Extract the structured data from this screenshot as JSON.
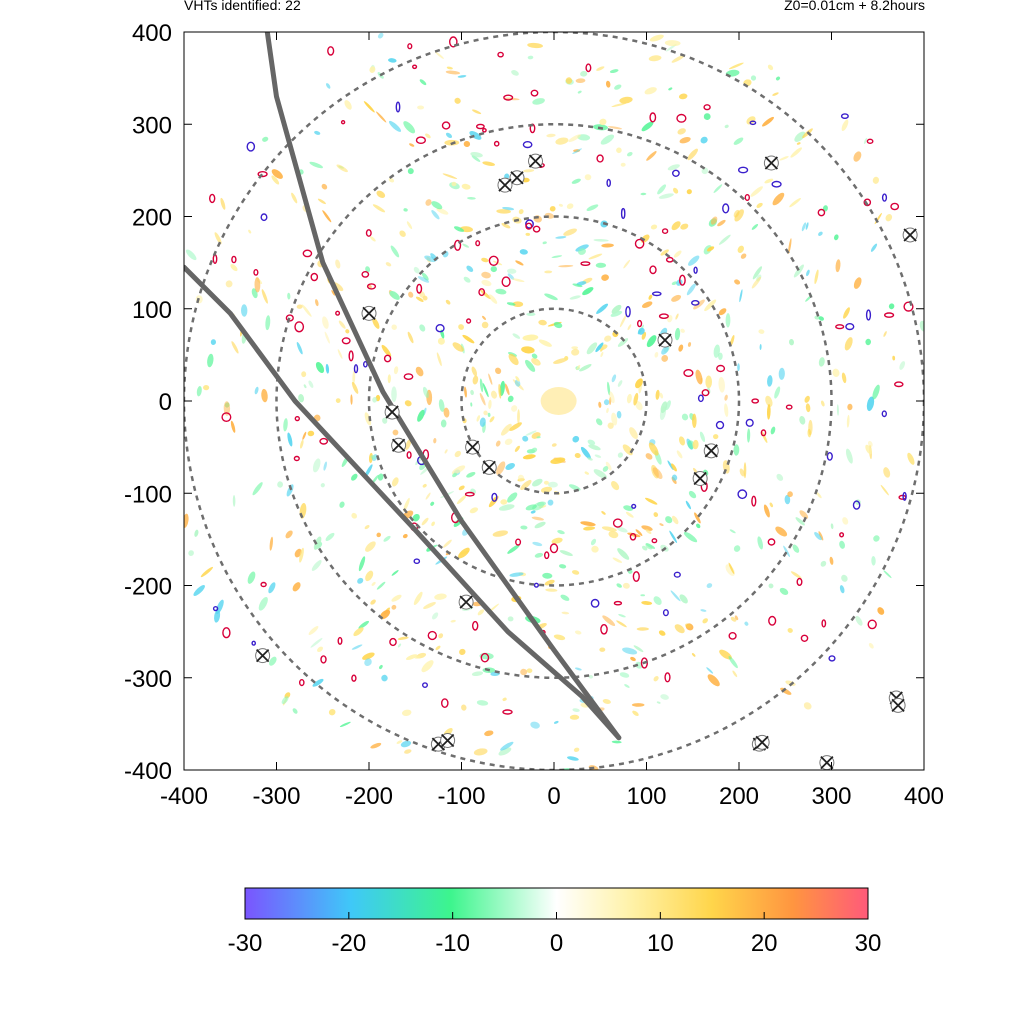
{
  "header": {
    "left": "VHTs identified: 22",
    "right": "Z0=0.01cm  + 8.2hours"
  },
  "chart_data": {
    "type": "scatter",
    "xlim": [
      -400,
      400
    ],
    "ylim": [
      -400,
      400
    ],
    "x_ticks": [
      "-400",
      "-300",
      "-200",
      "-100",
      "0",
      "100",
      "200",
      "300",
      "400"
    ],
    "y_ticks": [
      "400",
      "300",
      "200",
      "100",
      "0",
      "-100",
      "-200",
      "-300",
      "-400"
    ],
    "grid": false,
    "range_rings": [
      100,
      200,
      300,
      400
    ],
    "tracks": [
      [
        [
          -310,
          400
        ],
        [
          -300,
          330
        ],
        [
          -250,
          150
        ],
        [
          -185,
          10
        ],
        [
          -100,
          -130
        ],
        [
          0,
          -270
        ],
        [
          70,
          -365
        ]
      ],
      [
        [
          -400,
          145
        ],
        [
          -350,
          95
        ],
        [
          -280,
          0
        ],
        [
          -150,
          -140
        ],
        [
          -50,
          -250
        ],
        [
          30,
          -320
        ],
        [
          70,
          -365
        ]
      ]
    ],
    "vht_markers": [
      [
        -20,
        260
      ],
      [
        -40,
        242
      ],
      [
        -53,
        234
      ],
      [
        235,
        258
      ],
      [
        385,
        180
      ],
      [
        -200,
        95
      ],
      [
        120,
        66
      ],
      [
        -175,
        -12
      ],
      [
        -168,
        -48
      ],
      [
        -88,
        -50
      ],
      [
        -70,
        -72
      ],
      [
        170,
        -54
      ],
      [
        158,
        -84
      ],
      [
        -95,
        -218
      ],
      [
        -315,
        -276
      ],
      [
        -125,
        -372
      ],
      [
        222,
        -372
      ],
      [
        295,
        -392
      ],
      [
        370,
        -322
      ],
      [
        -115,
        -368
      ],
      [
        225,
        -370
      ],
      [
        372,
        -330
      ]
    ],
    "colorbar": {
      "ticks": [
        "-30",
        "-20",
        "-10",
        "0",
        "10",
        "20",
        "30"
      ],
      "range": [
        -30,
        30
      ],
      "colors": [
        "#7a55ff",
        "#3fc8f8",
        "#3df58d",
        "#ffffff",
        "#fff2a8",
        "#ffd54a",
        "#ff9540",
        "#ff5a7a"
      ]
    }
  }
}
